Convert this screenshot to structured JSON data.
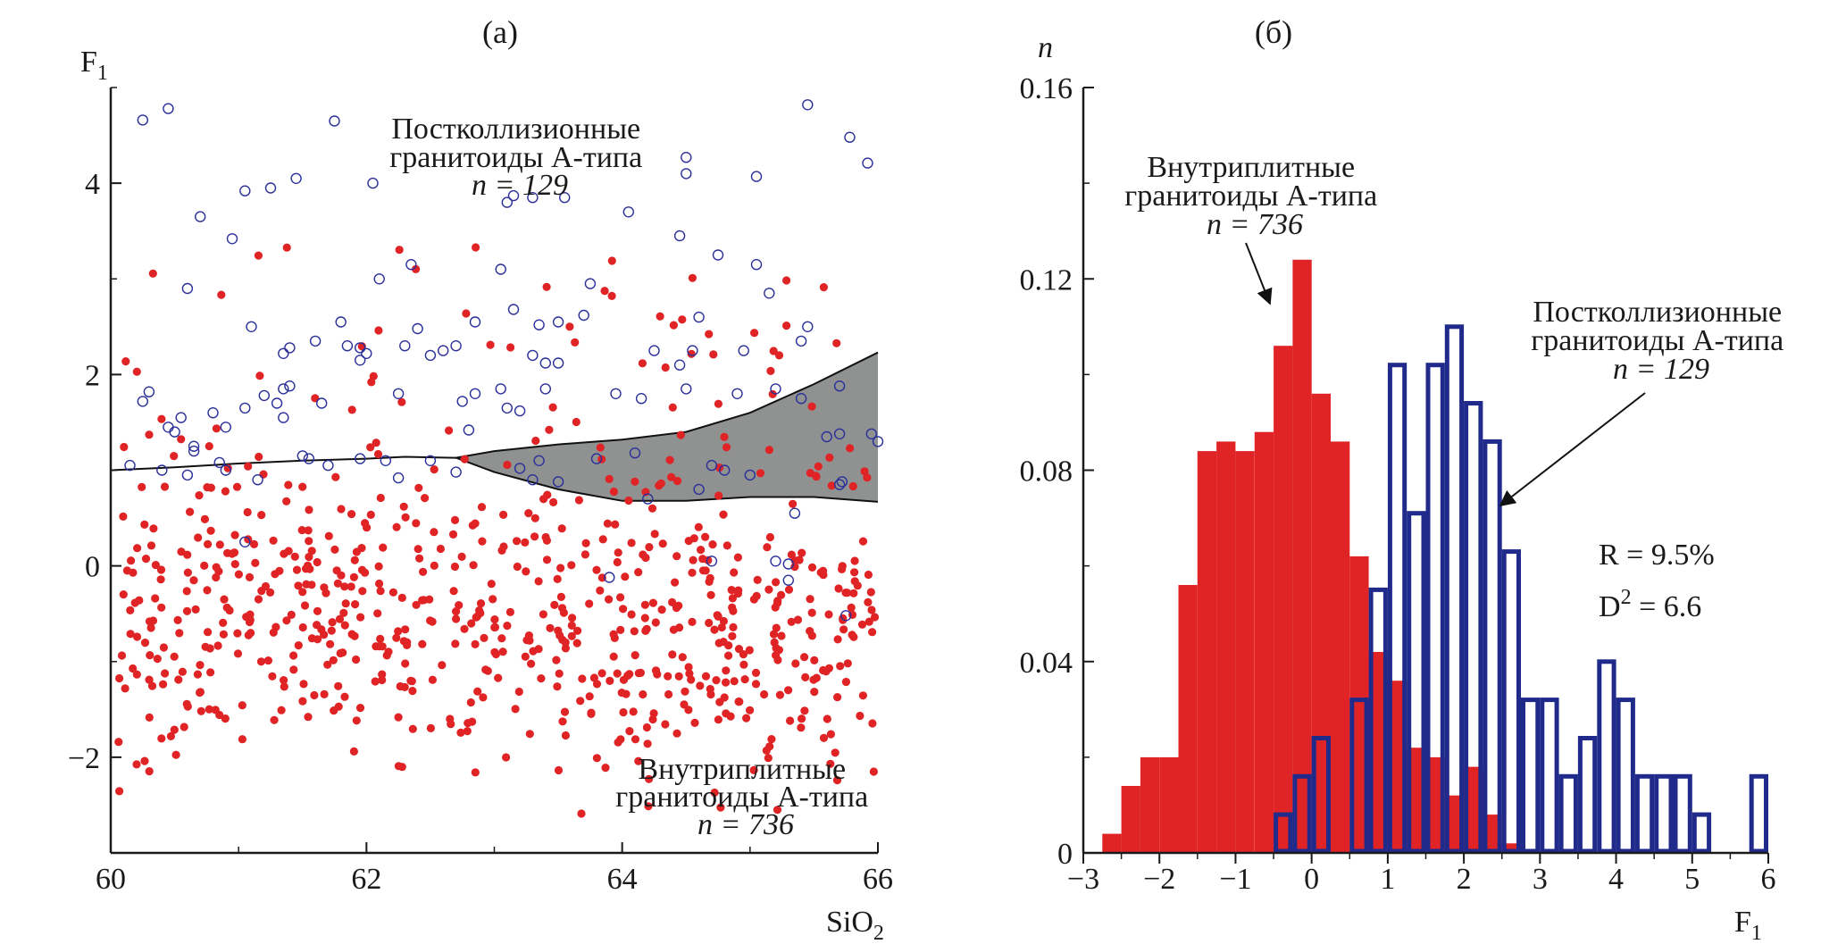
{
  "chart_data": [
    {
      "panel_label": "(а)",
      "type": "scatter",
      "xlabel": "SiO",
      "xlabel_sub": "2",
      "ylabel": "F",
      "ylabel_sub": "1",
      "xlim": [
        60,
        66
      ],
      "ylim": [
        -3,
        5
      ],
      "xticks": [
        {
          "v": 60,
          "t": "60"
        },
        {
          "v": 62,
          "t": "62"
        },
        {
          "v": 64,
          "t": "64"
        },
        {
          "v": 66,
          "t": "66"
        }
      ],
      "yticks": [
        {
          "v": -2,
          "t": "−2"
        },
        {
          "v": 0,
          "t": "0"
        },
        {
          "v": 2,
          "t": "2"
        },
        {
          "v": 4,
          "t": "4"
        }
      ],
      "boundary": {
        "upper": [
          [
            60,
            1.0
          ],
          [
            60.5,
            1.03
          ],
          [
            61,
            1.07
          ],
          [
            61.5,
            1.1
          ],
          [
            62,
            1.12
          ],
          [
            62.3,
            1.14
          ],
          [
            62.7,
            1.13
          ],
          [
            63.0,
            1.2
          ],
          [
            63.5,
            1.27
          ],
          [
            64.0,
            1.32
          ],
          [
            64.5,
            1.4
          ],
          [
            65.0,
            1.6
          ],
          [
            65.5,
            1.9
          ],
          [
            66,
            2.23
          ]
        ],
        "lower": [
          [
            62.7,
            1.13
          ],
          [
            63.0,
            0.98
          ],
          [
            63.5,
            0.8
          ],
          [
            64.0,
            0.68
          ],
          [
            64.5,
            0.68
          ],
          [
            65.0,
            0.72
          ],
          [
            65.5,
            0.72
          ],
          [
            66,
            0.67
          ]
        ],
        "fill": "#8f9291"
      },
      "series": [
        {
          "name": "Постколлизионные гранитоиды А-типа",
          "count_label": "n = 129",
          "color": "#2a2f9a",
          "marker": "open-circle",
          "points": [
            [
              60.25,
              4.66
            ],
            [
              60.45,
              4.78
            ],
            [
              61.75,
              4.65
            ],
            [
              64.5,
              4.27
            ],
            [
              65.45,
              4.82
            ],
            [
              65.78,
              4.48
            ],
            [
              65.92,
              4.21
            ],
            [
              61.05,
              3.92
            ],
            [
              61.25,
              3.95
            ],
            [
              61.45,
              4.05
            ],
            [
              62.05,
              4.0
            ],
            [
              63.15,
              3.87
            ],
            [
              63.1,
              3.8
            ],
            [
              63.3,
              3.85
            ],
            [
              63.55,
              3.85
            ],
            [
              64.05,
              3.7
            ],
            [
              64.5,
              4.1
            ],
            [
              65.05,
              4.07
            ],
            [
              60.7,
              3.65
            ],
            [
              60.95,
              3.42
            ],
            [
              62.35,
              3.15
            ],
            [
              63.05,
              3.1
            ],
            [
              64.45,
              3.45
            ],
            [
              64.75,
              3.25
            ],
            [
              65.05,
              3.15
            ],
            [
              60.6,
              2.9
            ],
            [
              62.1,
              3.0
            ],
            [
              63.75,
              2.95
            ],
            [
              65.15,
              2.85
            ],
            [
              61.1,
              2.5
            ],
            [
              61.6,
              2.35
            ],
            [
              61.8,
              2.55
            ],
            [
              62.4,
              2.48
            ],
            [
              62.85,
              2.55
            ],
            [
              63.15,
              2.68
            ],
            [
              63.35,
              2.52
            ],
            [
              63.5,
              2.55
            ],
            [
              63.7,
              2.62
            ],
            [
              64.6,
              2.6
            ],
            [
              65.45,
              2.5
            ],
            [
              65.4,
              2.35
            ],
            [
              61.4,
              2.28
            ],
            [
              61.35,
              2.22
            ],
            [
              61.85,
              2.3
            ],
            [
              61.95,
              2.28
            ],
            [
              62.0,
              2.22
            ],
            [
              62.3,
              2.3
            ],
            [
              62.5,
              2.2
            ],
            [
              62.6,
              2.25
            ],
            [
              62.7,
              2.3
            ],
            [
              63.3,
              2.2
            ],
            [
              63.4,
              2.12
            ],
            [
              63.5,
              2.12
            ],
            [
              64.25,
              2.25
            ],
            [
              64.45,
              2.1
            ],
            [
              64.55,
              2.25
            ],
            [
              64.95,
              2.25
            ],
            [
              61.95,
              2.15
            ],
            [
              60.3,
              1.82
            ],
            [
              60.25,
              1.72
            ],
            [
              60.55,
              1.55
            ],
            [
              60.8,
              1.6
            ],
            [
              61.2,
              1.78
            ],
            [
              61.35,
              1.85
            ],
            [
              61.4,
              1.88
            ],
            [
              61.3,
              1.7
            ],
            [
              61.05,
              1.65
            ],
            [
              61.65,
              1.7
            ],
            [
              62.25,
              1.8
            ],
            [
              62.75,
              1.72
            ],
            [
              62.85,
              1.8
            ],
            [
              63.05,
              1.85
            ],
            [
              63.1,
              1.65
            ],
            [
              63.2,
              1.62
            ],
            [
              63.4,
              1.85
            ],
            [
              63.95,
              1.8
            ],
            [
              64.15,
              1.75
            ],
            [
              64.5,
              1.85
            ],
            [
              64.9,
              1.8
            ],
            [
              65.2,
              1.85
            ],
            [
              65.4,
              1.75
            ],
            [
              65.7,
              1.88
            ],
            [
              62.8,
              1.42
            ],
            [
              61.35,
              1.55
            ],
            [
              60.45,
              1.45
            ],
            [
              60.9,
              1.45
            ],
            [
              60.65,
              1.25
            ],
            [
              60.5,
              1.4
            ],
            [
              61.5,
              1.15
            ],
            [
              61.55,
              1.12
            ],
            [
              62.15,
              1.1
            ],
            [
              61.7,
              1.05
            ],
            [
              62.25,
              0.92
            ],
            [
              60.85,
              1.08
            ],
            [
              60.65,
              1.2
            ],
            [
              65.6,
              1.35
            ],
            [
              65.7,
              1.38
            ],
            [
              65.95,
              1.38
            ],
            [
              66.0,
              1.3
            ],
            [
              64.7,
              1.05
            ],
            [
              64.8,
              1.0
            ],
            [
              65.0,
              0.95
            ],
            [
              65.7,
              0.85
            ],
            [
              65.72,
              0.88
            ],
            [
              63.8,
              1.12
            ],
            [
              63.35,
              1.1
            ],
            [
              63.5,
              0.88
            ],
            [
              63.3,
              0.9
            ],
            [
              63.2,
              1.02
            ],
            [
              64.2,
              0.7
            ],
            [
              65.35,
              0.55
            ],
            [
              61.05,
              0.25
            ],
            [
              64.7,
              0.05
            ],
            [
              65.2,
              0.05
            ],
            [
              65.3,
              0.02
            ],
            [
              65.3,
              -0.15
            ],
            [
              63.9,
              -0.12
            ],
            [
              65.75,
              -0.52
            ],
            [
              61.95,
              1.12
            ],
            [
              62.5,
              1.1
            ],
            [
              62.7,
              0.98
            ],
            [
              60.9,
              1.0
            ],
            [
              64.6,
              0.8
            ],
            [
              61.15,
              0.9
            ],
            [
              60.6,
              0.95
            ],
            [
              60.4,
              1.0
            ],
            [
              60.15,
              1.05
            ],
            [
              64.1,
              1.18
            ]
          ]
        },
        {
          "name": "Внутриплитные гранитоиды А-типа",
          "count_label": "n = 736",
          "color": "#e02426",
          "marker": "filled-circle",
          "count": 736
        }
      ],
      "annotations": [
        {
          "lines": [
            "Постколлизионные",
            "гранитоиды А-типа"
          ],
          "count": "n = 129"
        },
        {
          "lines": [
            "Внутриплитные",
            "гранитоиды А-типа"
          ],
          "count": "n = 736"
        }
      ]
    },
    {
      "panel_label": "(б)",
      "type": "bar",
      "subtype": "histogram",
      "xlabel": "F",
      "xlabel_sub": "1",
      "ylabel": "n",
      "xlim": [
        -3,
        6
      ],
      "ylim": [
        0,
        0.16
      ],
      "bin_width": 0.25,
      "xticks": [
        {
          "v": -3,
          "t": "−3"
        },
        {
          "v": -2,
          "t": "−2"
        },
        {
          "v": -1,
          "t": "−1"
        },
        {
          "v": 0,
          "t": "0"
        },
        {
          "v": 1,
          "t": "1"
        },
        {
          "v": 2,
          "t": "2"
        },
        {
          "v": 3,
          "t": "3"
        },
        {
          "v": 4,
          "t": "4"
        },
        {
          "v": 5,
          "t": "5"
        },
        {
          "v": 6,
          "t": "6"
        }
      ],
      "yticks": [
        {
          "v": 0,
          "t": "0"
        },
        {
          "v": 0.04,
          "t": "0.04"
        },
        {
          "v": 0.08,
          "t": "0.08"
        },
        {
          "v": 0.12,
          "t": "0.12"
        },
        {
          "v": 0.16,
          "t": "0.16"
        }
      ],
      "series": [
        {
          "name": "Внутриплитные гранитоиды А-типа",
          "count_label": "n = 736",
          "color": "#e02426",
          "style": "filled",
          "bins": [
            {
              "x0": -2.75,
              "y": 0.004
            },
            {
              "x0": -2.5,
              "y": 0.014
            },
            {
              "x0": -2.25,
              "y": 0.02
            },
            {
              "x0": -2.0,
              "y": 0.02
            },
            {
              "x0": -1.75,
              "y": 0.056
            },
            {
              "x0": -1.5,
              "y": 0.084
            },
            {
              "x0": -1.25,
              "y": 0.086
            },
            {
              "x0": -1.0,
              "y": 0.084
            },
            {
              "x0": -0.75,
              "y": 0.088
            },
            {
              "x0": -0.5,
              "y": 0.106
            },
            {
              "x0": -0.25,
              "y": 0.124
            },
            {
              "x0": 0.0,
              "y": 0.096
            },
            {
              "x0": 0.25,
              "y": 0.086
            },
            {
              "x0": 0.5,
              "y": 0.062
            },
            {
              "x0": 0.75,
              "y": 0.042
            },
            {
              "x0": 1.0,
              "y": 0.036
            },
            {
              "x0": 1.25,
              "y": 0.022
            },
            {
              "x0": 1.5,
              "y": 0.02
            },
            {
              "x0": 1.75,
              "y": 0.012
            },
            {
              "x0": 2.0,
              "y": 0.018
            },
            {
              "x0": 2.25,
              "y": 0.008
            },
            {
              "x0": 2.5,
              "y": 0.002
            }
          ]
        },
        {
          "name": "Постколлизионные гранитоиды А-типа",
          "count_label": "n = 129",
          "color": "#1f2a8a",
          "style": "outline",
          "bins": [
            {
              "x0": -0.5,
              "y": 0.008
            },
            {
              "x0": -0.25,
              "y": 0.016
            },
            {
              "x0": 0.0,
              "y": 0.024
            },
            {
              "x0": 0.5,
              "y": 0.032
            },
            {
              "x0": 0.75,
              "y": 0.055
            },
            {
              "x0": 1.0,
              "y": 0.102
            },
            {
              "x0": 1.25,
              "y": 0.071
            },
            {
              "x0": 1.5,
              "y": 0.102
            },
            {
              "x0": 1.75,
              "y": 0.11
            },
            {
              "x0": 2.0,
              "y": 0.094
            },
            {
              "x0": 2.25,
              "y": 0.086
            },
            {
              "x0": 2.5,
              "y": 0.063
            },
            {
              "x0": 2.75,
              "y": 0.032
            },
            {
              "x0": 3.0,
              "y": 0.032
            },
            {
              "x0": 3.25,
              "y": 0.016
            },
            {
              "x0": 3.5,
              "y": 0.024
            },
            {
              "x0": 3.75,
              "y": 0.04
            },
            {
              "x0": 4.0,
              "y": 0.032
            },
            {
              "x0": 4.25,
              "y": 0.016
            },
            {
              "x0": 4.5,
              "y": 0.016
            },
            {
              "x0": 4.75,
              "y": 0.016
            },
            {
              "x0": 5.0,
              "y": 0.008
            },
            {
              "x0": 5.75,
              "y": 0.016
            }
          ]
        }
      ],
      "annotations": [
        {
          "lines": [
            "Внутриплитные",
            "гранитоиды А-типа"
          ],
          "count": "n = 736"
        },
        {
          "lines": [
            "Постколлизионные",
            "гранитоиды А-типа"
          ],
          "count": "n = 129"
        }
      ],
      "stats": {
        "r": "R = 9.5%",
        "d2_prefix": "D",
        "d2_sup": "2",
        "d2_rest": " = 6.6"
      }
    }
  ]
}
